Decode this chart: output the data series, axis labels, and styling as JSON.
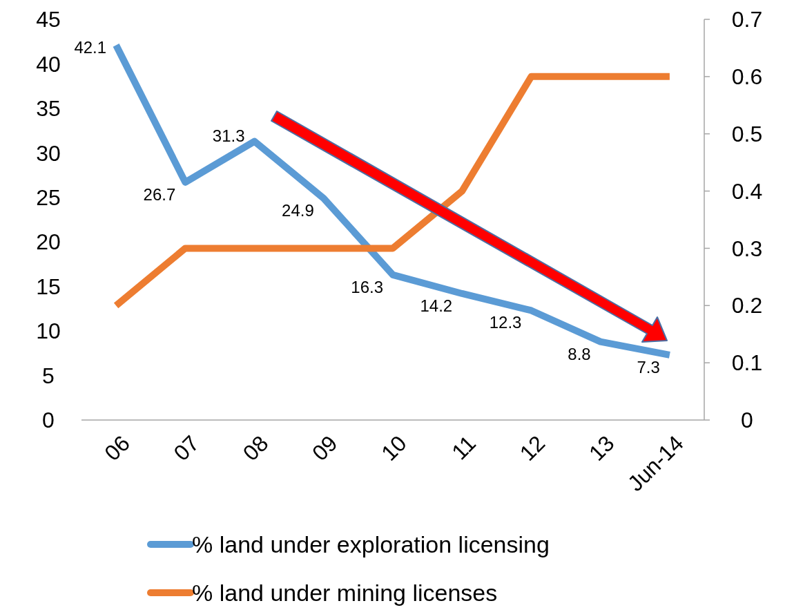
{
  "chart_data": {
    "type": "line",
    "categories": [
      "06",
      "07",
      "08",
      "09",
      "10",
      "11",
      "12",
      "13",
      "Jun-14"
    ],
    "series": [
      {
        "name": "% land under exploration licensing",
        "color": "#5b9bd5",
        "values": [
          42.1,
          26.7,
          31.3,
          24.9,
          16.3,
          14.2,
          12.3,
          8.8,
          7.3
        ],
        "data_labels": true
      },
      {
        "name": "% land under mining licenses",
        "color": "#ed7d31",
        "values": [
          0.2,
          0.3,
          0.3,
          0.3,
          0.3,
          0.4,
          0.6,
          0.6,
          0.6
        ],
        "axis": "y2"
      }
    ],
    "ylim": [
      0,
      45
    ],
    "yticks": [
      0,
      5,
      10,
      15,
      20,
      25,
      30,
      35,
      40,
      45
    ],
    "y2lim": [
      0,
      0.7
    ],
    "y2ticks": [
      0,
      0.1,
      0.2,
      0.3,
      0.4,
      0.5,
      0.6,
      0.7
    ],
    "legend": "bottom",
    "marker": "none",
    "line_style": "solid"
  }
}
